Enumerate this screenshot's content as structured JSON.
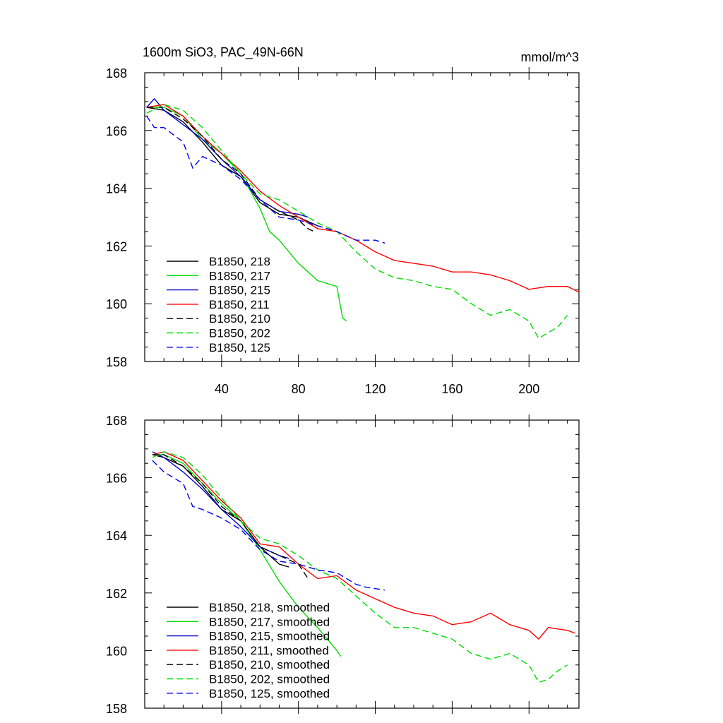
{
  "chart_data": [
    {
      "type": "line",
      "title": "1600m SiO3, PAC_49N-66N",
      "units": "mmol/m^3",
      "xlim": [
        0,
        226
      ],
      "ylim": [
        158,
        168
      ],
      "x_ticks": [
        40,
        80,
        120,
        160,
        200
      ],
      "x_tick_labels": [
        "40",
        "80",
        "120",
        "160",
        "200"
      ],
      "y_ticks": [
        158,
        160,
        162,
        164,
        166,
        168
      ],
      "y_tick_labels": [
        "158",
        "160",
        "162",
        "164",
        "166",
        "168"
      ],
      "legend_position": "bottom-left",
      "series": [
        {
          "name": "B1850, 218",
          "color": "#000000",
          "dash": "solid",
          "x": [
            1,
            10,
            20,
            30,
            40,
            50,
            60,
            70,
            80,
            90
          ],
          "y": [
            166.8,
            166.7,
            166.3,
            165.6,
            164.8,
            164.4,
            163.5,
            163.1,
            163.0,
            162.7
          ]
        },
        {
          "name": "B1850, 217",
          "color": "#00dd00",
          "dash": "solid",
          "x": [
            1,
            10,
            20,
            30,
            40,
            50,
            60,
            65,
            70,
            80,
            90,
            100,
            103,
            105
          ],
          "y": [
            166.8,
            166.8,
            166.5,
            165.7,
            165.2,
            164.5,
            163.3,
            162.5,
            162.2,
            161.4,
            160.8,
            160.6,
            159.5,
            159.4
          ]
        },
        {
          "name": "B1850, 215",
          "color": "#0000cc",
          "dash": "solid",
          "x": [
            1,
            5,
            10,
            20,
            30,
            40,
            50,
            60,
            70,
            80,
            85
          ],
          "y": [
            166.8,
            167.1,
            166.7,
            166.2,
            165.7,
            165.0,
            164.4,
            163.6,
            163.2,
            163.1,
            163.0
          ]
        },
        {
          "name": "B1850, 211",
          "color": "#ff0000",
          "dash": "solid",
          "x": [
            1,
            10,
            20,
            30,
            40,
            50,
            60,
            70,
            80,
            90,
            100,
            110,
            120,
            130,
            140,
            150,
            160,
            170,
            180,
            190,
            200,
            210,
            220,
            226
          ],
          "y": [
            166.8,
            166.9,
            166.5,
            165.8,
            165.2,
            164.6,
            163.9,
            163.4,
            163.0,
            162.6,
            162.5,
            162.2,
            161.8,
            161.5,
            161.4,
            161.3,
            161.1,
            161.1,
            161.0,
            160.8,
            160.5,
            160.6,
            160.6,
            160.4
          ]
        },
        {
          "name": "B1850, 210",
          "color": "#000000",
          "dash": "dashed",
          "x": [
            1,
            10,
            20,
            30,
            40,
            50,
            60,
            70,
            80,
            85,
            88
          ],
          "y": [
            166.8,
            166.8,
            166.4,
            165.8,
            165.0,
            164.5,
            163.6,
            163.2,
            162.9,
            162.6,
            162.5
          ]
        },
        {
          "name": "B1850, 202",
          "color": "#00dd00",
          "dash": "dashed",
          "x": [
            1,
            10,
            20,
            30,
            40,
            50,
            60,
            70,
            80,
            90,
            100,
            110,
            120,
            130,
            140,
            150,
            160,
            170,
            180,
            190,
            200,
            205,
            210,
            215,
            220
          ],
          "y": [
            166.6,
            166.9,
            166.7,
            166.1,
            165.3,
            164.5,
            163.8,
            163.6,
            163.2,
            162.8,
            162.5,
            161.8,
            161.2,
            160.9,
            160.8,
            160.6,
            160.5,
            160.0,
            159.6,
            159.8,
            159.4,
            158.8,
            159.0,
            159.2,
            159.6
          ]
        },
        {
          "name": "B1850, 125",
          "color": "#0000ee",
          "dash": "dashed",
          "x": [
            1,
            5,
            10,
            20,
            25,
            30,
            40,
            50,
            60,
            70,
            80,
            90,
            100,
            110,
            120,
            125
          ],
          "y": [
            166.5,
            166.1,
            166.1,
            165.6,
            164.7,
            165.1,
            164.8,
            164.3,
            163.6,
            163.0,
            162.9,
            162.7,
            162.5,
            162.2,
            162.2,
            162.1
          ]
        }
      ]
    },
    {
      "type": "line",
      "xlim": [
        0,
        226
      ],
      "ylim": [
        158,
        168
      ],
      "x_ticks": [
        40,
        80,
        120,
        160,
        200
      ],
      "y_ticks": [
        158,
        160,
        162,
        164,
        166,
        168
      ],
      "y_tick_labels": [
        "158",
        "160",
        "162",
        "164",
        "166",
        "168"
      ],
      "legend_position": "bottom-left",
      "series": [
        {
          "name": "B1850, 218, smoothed",
          "color": "#000000",
          "dash": "solid",
          "x": [
            4,
            10,
            20,
            30,
            40,
            50,
            60,
            70,
            75
          ],
          "y": [
            166.8,
            166.7,
            166.4,
            165.7,
            164.9,
            164.5,
            163.6,
            163.0,
            162.9
          ]
        },
        {
          "name": "B1850, 217, smoothed",
          "color": "#00dd00",
          "dash": "solid",
          "x": [
            4,
            10,
            20,
            30,
            40,
            50,
            60,
            70,
            80,
            90,
            100,
            102
          ],
          "y": [
            166.8,
            166.8,
            166.5,
            165.8,
            165.1,
            164.5,
            163.5,
            162.4,
            161.5,
            160.8,
            160.0,
            159.8
          ]
        },
        {
          "name": "B1850, 215, smoothed",
          "color": "#0000cc",
          "dash": "solid",
          "x": [
            4,
            10,
            20,
            30,
            40,
            50,
            60,
            70,
            75
          ],
          "y": [
            166.9,
            166.7,
            166.2,
            165.6,
            164.9,
            164.3,
            163.6,
            163.3,
            163.2
          ]
        },
        {
          "name": "B1850, 211, smoothed",
          "color": "#ff0000",
          "dash": "solid",
          "x": [
            4,
            10,
            20,
            30,
            40,
            50,
            60,
            70,
            80,
            90,
            100,
            110,
            120,
            130,
            140,
            150,
            160,
            170,
            180,
            190,
            200,
            205,
            210,
            220,
            224
          ],
          "y": [
            166.8,
            166.9,
            166.6,
            165.9,
            165.2,
            164.6,
            163.7,
            163.6,
            163.0,
            162.5,
            162.6,
            162.1,
            161.8,
            161.5,
            161.3,
            161.2,
            160.9,
            161.0,
            161.3,
            160.9,
            160.7,
            160.4,
            160.8,
            160.7,
            160.6
          ]
        },
        {
          "name": "B1850, 210, smoothed",
          "color": "#000000",
          "dash": "dashed",
          "x": [
            4,
            10,
            20,
            30,
            40,
            50,
            60,
            70,
            80,
            85
          ],
          "y": [
            166.8,
            166.8,
            166.4,
            165.8,
            165.0,
            164.5,
            163.6,
            163.3,
            163.0,
            162.5
          ]
        },
        {
          "name": "B1850, 202, smoothed",
          "color": "#00dd00",
          "dash": "dashed",
          "x": [
            4,
            10,
            20,
            30,
            40,
            50,
            60,
            70,
            80,
            90,
            100,
            110,
            120,
            130,
            140,
            150,
            160,
            170,
            180,
            190,
            200,
            205,
            210,
            215,
            220
          ],
          "y": [
            166.7,
            166.9,
            166.7,
            166.1,
            165.3,
            164.5,
            163.9,
            163.7,
            163.3,
            162.8,
            162.5,
            161.9,
            161.3,
            160.8,
            160.8,
            160.6,
            160.4,
            159.9,
            159.7,
            159.9,
            159.5,
            158.9,
            159.0,
            159.3,
            159.5
          ]
        },
        {
          "name": "B1850, 125, smoothed",
          "color": "#0000ee",
          "dash": "dashed",
          "x": [
            4,
            10,
            20,
            25,
            30,
            40,
            50,
            60,
            70,
            80,
            90,
            100,
            110,
            115,
            125
          ],
          "y": [
            166.6,
            166.2,
            165.8,
            165.0,
            164.9,
            164.6,
            164.2,
            163.5,
            163.1,
            163.0,
            162.8,
            162.7,
            162.3,
            162.2,
            162.1
          ]
        }
      ]
    }
  ]
}
